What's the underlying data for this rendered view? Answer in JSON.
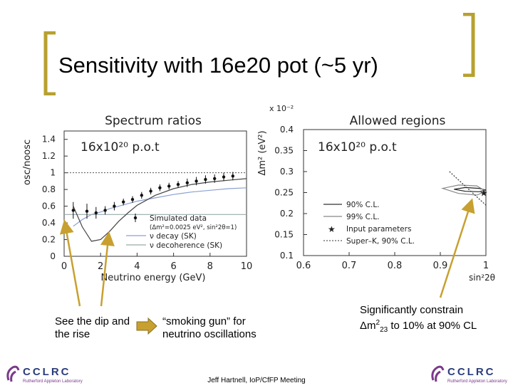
{
  "slide": {
    "title": "Sensitivity with 16e20 pot (~5 yr)",
    "footer": "Jeff Hartnell, IoP/CfFP Meeting",
    "accent_color": "#b8a030",
    "arrow_color": "#c8a030"
  },
  "captions": {
    "left": "See the dip and the rise",
    "middle": "“smoking gun” for neutrino oscillations",
    "right_prefix": "Significantly constrain Δm",
    "right_sup": "2",
    "right_sub": "23",
    "right_suffix": " to 10% at 90% CL"
  },
  "logo": {
    "text": "CCLRC",
    "subtitle": "Rutherford Appleton Laboratory"
  },
  "chart_data": [
    {
      "type": "scatter",
      "title": "Spectrum ratios",
      "annotation": "16x10²⁰ p.o.t",
      "xlabel": "Neutrino energy (GeV)",
      "ylabel": "osc/noosc",
      "xlim": [
        0,
        10
      ],
      "ylim": [
        0,
        1.5
      ],
      "xticks": [
        "0",
        "2",
        "4",
        "6",
        "8",
        "10"
      ],
      "yticks": [
        "0",
        "0.2",
        "0.4",
        "0.6",
        "0.8",
        "1",
        "1.2",
        "1.4"
      ],
      "reference_line": 1,
      "series": [
        {
          "name": "Simulated data",
          "legend_detail": "(Δm²=0.0025 eV², sin²2θ=1)",
          "x": [
            0.5,
            1.25,
            1.75,
            2.25,
            2.75,
            3.25,
            3.75,
            4.25,
            4.75,
            5.25,
            5.75,
            6.25,
            6.75,
            7.25,
            7.75,
            8.25,
            8.75,
            9.25
          ],
          "y": [
            0.55,
            0.54,
            0.52,
            0.55,
            0.6,
            0.65,
            0.68,
            0.73,
            0.78,
            0.82,
            0.84,
            0.86,
            0.88,
            0.9,
            0.92,
            0.93,
            0.95,
            0.96
          ],
          "yerr": [
            0.1,
            0.09,
            0.07,
            0.05,
            0.05,
            0.04,
            0.04,
            0.04,
            0.04,
            0.04,
            0.04,
            0.04,
            0.05,
            0.05,
            0.05,
            0.05,
            0.05,
            0.05
          ]
        },
        {
          "name": "ν decay (SK)",
          "x": [
            0.5,
            1,
            1.5,
            2,
            2.5,
            3,
            3.5,
            4,
            5,
            6,
            7,
            8,
            9,
            10
          ],
          "y": [
            0.36,
            0.44,
            0.5,
            0.53,
            0.57,
            0.6,
            0.63,
            0.66,
            0.7,
            0.74,
            0.77,
            0.79,
            0.81,
            0.82
          ]
        },
        {
          "name": "ν decoherence (SK)",
          "x": [
            0,
            2,
            4,
            6,
            8,
            10
          ],
          "y": [
            0.5,
            0.5,
            0.5,
            0.5,
            0.5,
            0.5
          ]
        },
        {
          "name": "oscillation (unlabelled solid curve)",
          "x": [
            0.5,
            1,
            1.5,
            2,
            2.5,
            3,
            3.5,
            4,
            5,
            6,
            7,
            8,
            9,
            10
          ],
          "y": [
            0.6,
            0.35,
            0.18,
            0.2,
            0.3,
            0.42,
            0.52,
            0.61,
            0.73,
            0.81,
            0.86,
            0.89,
            0.91,
            0.93
          ]
        }
      ]
    },
    {
      "type": "line",
      "title": "Allowed regions",
      "annotation": "16x10²⁰ p.o.t",
      "xlabel": "sin²2θ",
      "ylabel": "Δm² (eV²)",
      "y_multiplier": "x 10⁻²",
      "xlim": [
        0.6,
        1
      ],
      "ylim": [
        0.1,
        0.4
      ],
      "xticks": [
        "0.6",
        "0.7",
        "0.8",
        "0.9",
        "1"
      ],
      "yticks": [
        "0.1",
        "0.15",
        "0.2",
        "0.25",
        "0.3",
        "0.35",
        "0.4"
      ],
      "legend": [
        "90% C.L.",
        "99% C.L.",
        "Input parameters",
        "Super–K, 90% C.L."
      ],
      "contours": [
        {
          "name": "90% C.L.",
          "x": [
            0.93,
            0.955,
            0.985,
            1.0,
            0.985,
            0.955,
            0.93
          ],
          "y": [
            0.258,
            0.253,
            0.252,
            0.256,
            0.26,
            0.262,
            0.258
          ]
        },
        {
          "name": "99% C.L.",
          "x": [
            0.905,
            0.94,
            0.98,
            1.0,
            0.98,
            0.94,
            0.905
          ],
          "y": [
            0.26,
            0.248,
            0.244,
            0.253,
            0.266,
            0.268,
            0.26
          ]
        },
        {
          "name": "Super–K, 90% C.L.",
          "x": [
            0.92,
            0.95,
            0.985,
            1.0
          ],
          "y": [
            0.3,
            0.27,
            0.235,
            0.22
          ]
        }
      ],
      "points": [
        {
          "name": "Input parameters",
          "x": 1.0,
          "y": 0.25
        }
      ]
    }
  ]
}
